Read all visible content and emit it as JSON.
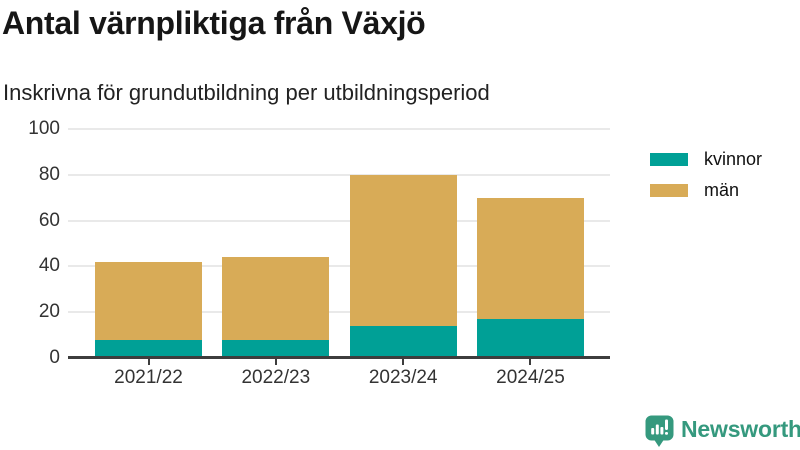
{
  "header": {
    "title": "Antal värnpliktiga från Växjö",
    "subtitle": "Inskrivna för grundutbildning per utbildningsperiod"
  },
  "chart_data": {
    "type": "bar",
    "stacked": true,
    "title": "Antal värnpliktiga från Växjö",
    "subtitle": "Inskrivna för grundutbildning per utbildningsperiod",
    "categories": [
      "2021/22",
      "2022/23",
      "2023/24",
      "2024/25"
    ],
    "series": [
      {
        "key": "kvinnor",
        "name": "kvinnor",
        "color": "#00a096",
        "values": [
          8,
          8,
          14,
          17
        ]
      },
      {
        "key": "men",
        "name": "män",
        "color": "#d8ab57",
        "values": [
          34,
          36,
          66,
          53
        ]
      }
    ],
    "stack_totals": [
      42,
      44,
      80,
      70
    ],
    "xlabel": "",
    "ylabel": "",
    "ylim": [
      0,
      100
    ],
    "yticks": [
      0,
      20,
      40,
      60,
      80,
      100
    ],
    "grid": true,
    "legend_position": "right"
  },
  "branding": {
    "logo_text": "Newsworthy",
    "logo_color": "#35997e",
    "logo_icon": "bar-chart-speech-bubble"
  }
}
